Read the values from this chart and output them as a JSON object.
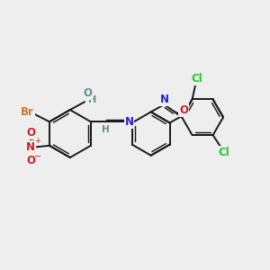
{
  "bg_color": "#eeeeee",
  "bond_color": "#1a1a1a",
  "bw": 1.4,
  "figsize": [
    3.0,
    3.0
  ],
  "dpi": 100,
  "colors": {
    "Br": "#cc7722",
    "HO": "#5c9090",
    "N": "#2222cc",
    "O": "#cc2222",
    "Cl": "#22cc22",
    "H": "#5c9090",
    "C": "#1a1a1a"
  },
  "xlim": [
    0,
    10
  ],
  "ylim": [
    0,
    10
  ],
  "fs": 8.5
}
